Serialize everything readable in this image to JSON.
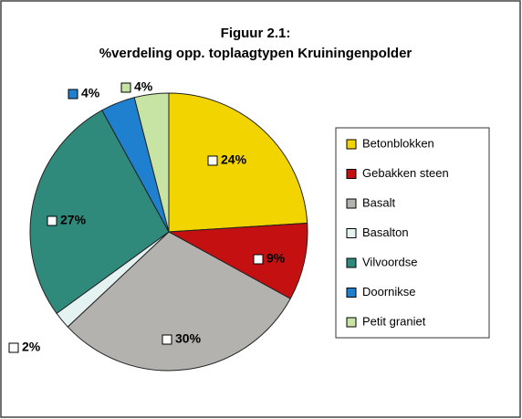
{
  "chart_data": {
    "type": "pie",
    "title": "Figuur 2.1:",
    "subtitle": "%verdeling opp. toplaagtypen Kruiningenpolder",
    "categories": [
      "Betonblokken",
      "Gebakken steen",
      "Basalt",
      "Basalton",
      "Vilvoordse",
      "Doornikse",
      "Petit graniet"
    ],
    "values": [
      24,
      9,
      30,
      2,
      27,
      4,
      4
    ],
    "value_labels": [
      "24%",
      "9%",
      "30%",
      "2%",
      "27%",
      "4%",
      "4%"
    ],
    "colors": [
      "#f2d400",
      "#c41010",
      "#b4b2ae",
      "#e4f2f2",
      "#2f8a7c",
      "#2080d0",
      "#c8e4a4"
    ],
    "legend": "right"
  }
}
